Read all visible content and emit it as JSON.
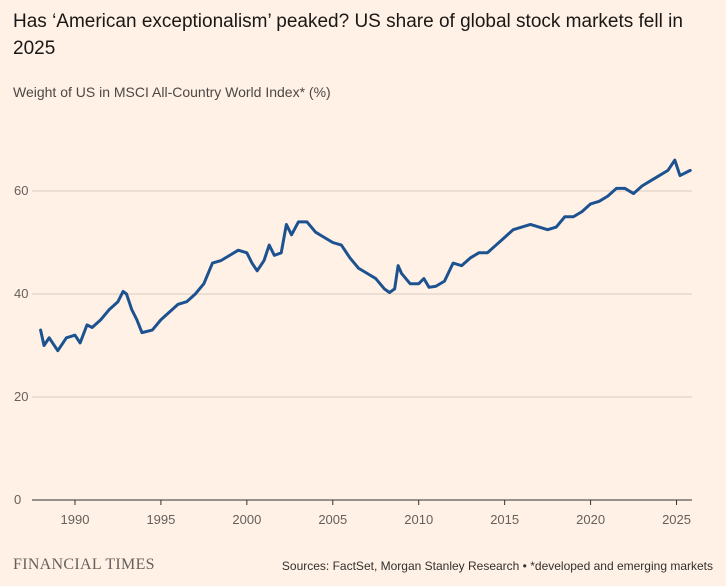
{
  "brand": "FINANCIAL TIMES",
  "chart_data": {
    "type": "line",
    "title": "Has ‘American exceptionalism’ peaked? US share of global stock markets fell in 2025",
    "subtitle": "Weight of US in MSCI All-Country World Index* (%)",
    "source": "Sources: FactSet, Morgan Stanley Research • *developed and emerging markets",
    "color": "#1d5291",
    "grid": true,
    "xlim": [
      1987.5,
      2025.9
    ],
    "xticks": [
      1990,
      1995,
      2000,
      2005,
      2010,
      2015,
      2020,
      2025
    ],
    "ylim": [
      0,
      70
    ],
    "yticks": [
      0,
      20,
      40,
      60
    ],
    "x": [
      1988.0,
      1988.2,
      1988.5,
      1989.0,
      1989.5,
      1990.0,
      1990.3,
      1990.7,
      1991.0,
      1991.5,
      1992.0,
      1992.5,
      1992.8,
      1993.0,
      1993.3,
      1993.6,
      1993.9,
      1994.5,
      1995.0,
      1995.5,
      1996.0,
      1996.5,
      1997.0,
      1997.5,
      1998.0,
      1998.5,
      1999.0,
      1999.5,
      2000.0,
      2000.3,
      2000.6,
      2001.0,
      2001.3,
      2001.6,
      2002.0,
      2002.3,
      2002.6,
      2003.0,
      2003.5,
      2004.0,
      2004.5,
      2005.0,
      2005.5,
      2006.0,
      2006.5,
      2007.0,
      2007.5,
      2008.0,
      2008.3,
      2008.6,
      2008.8,
      2009.0,
      2009.5,
      2010.0,
      2010.3,
      2010.6,
      2011.0,
      2011.5,
      2012.0,
      2012.5,
      2013.0,
      2013.5,
      2014.0,
      2014.5,
      2015.0,
      2015.5,
      2016.0,
      2016.5,
      2017.0,
      2017.5,
      2018.0,
      2018.5,
      2019.0,
      2019.5,
      2020.0,
      2020.5,
      2021.0,
      2021.5,
      2022.0,
      2022.5,
      2023.0,
      2023.5,
      2024.0,
      2024.5,
      2024.9,
      2025.2,
      2025.8
    ],
    "values": [
      33,
      30,
      31.5,
      29,
      31.5,
      32,
      30.5,
      34,
      33.5,
      35,
      37,
      38.5,
      40.5,
      40,
      37,
      35,
      32.5,
      33,
      35,
      36.5,
      38,
      38.5,
      40,
      42,
      46,
      46.5,
      47.5,
      48.5,
      48,
      46,
      44.5,
      46.5,
      49.5,
      47.5,
      48,
      53.5,
      51.5,
      54,
      54,
      52,
      51,
      50,
      49.5,
      47,
      45,
      44,
      43,
      41,
      40.3,
      41,
      45.5,
      44,
      42,
      42,
      43,
      41.3,
      41.5,
      42.5,
      46,
      45.5,
      47,
      48,
      48,
      49.5,
      51,
      52.5,
      53,
      53.5,
      53,
      52.5,
      53,
      55,
      55,
      56,
      57.5,
      58,
      59,
      60.5,
      60.5,
      59.5,
      61,
      62,
      63,
      64,
      66,
      63,
      64
    ]
  }
}
